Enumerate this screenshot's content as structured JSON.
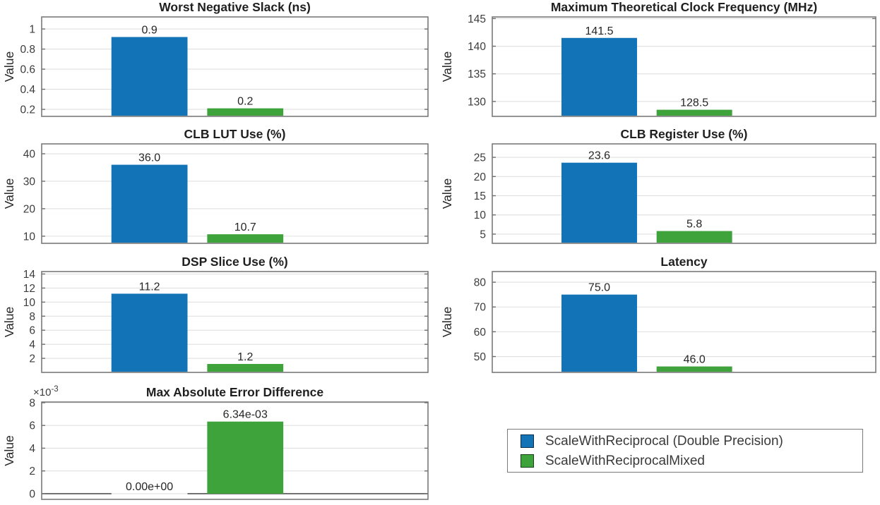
{
  "figure": {
    "background": "#ffffff"
  },
  "colors": {
    "series1": "#1273B7",
    "series2": "#3DA33A",
    "grid": "#e0e0e0",
    "box_border": "#7a7a7a",
    "tick_mark": "#6e6e6e",
    "baseline": "#545454",
    "title_text": "#1f1f1f",
    "tick_text": "#3c3c3c",
    "label_text": "#262626"
  },
  "legend": {
    "entries": [
      {
        "label": "ScaleWithReciprocal (Double Precision)",
        "color_key": "series1"
      },
      {
        "label": "ScaleWithReciprocalMixed",
        "color_key": "series2"
      }
    ]
  },
  "chart_data": [
    {
      "type": "bar",
      "title": "Worst Negative Slack (ns)",
      "ylabel": "Value",
      "categories": [
        "ScaleWithReciprocal (Double Precision)",
        "ScaleWithReciprocalMixed"
      ],
      "values": [
        0.92,
        0.21
      ],
      "bar_labels": [
        "0.9",
        "0.2"
      ],
      "ylim": [
        0.13,
        1.12
      ],
      "yticks": [
        0.2,
        0.4,
        0.6,
        0.8,
        1
      ],
      "ytick_labels": [
        "0.2",
        "0.4",
        "0.6",
        "0.8",
        "1"
      ],
      "grid": true,
      "baseline_at_zero": false,
      "y_offset_text": ""
    },
    {
      "type": "bar",
      "title": "Maximum Theoretical Clock Frequency (MHz)",
      "ylabel": "Value",
      "categories": [
        "ScaleWithReciprocal (Double Precision)",
        "ScaleWithReciprocalMixed"
      ],
      "values": [
        141.5,
        128.5
      ],
      "bar_labels": [
        "141.5",
        "128.5"
      ],
      "ylim": [
        127.3,
        145.3
      ],
      "yticks": [
        130,
        135,
        140,
        145
      ],
      "ytick_labels": [
        "130",
        "135",
        "140",
        "145"
      ],
      "grid": true,
      "baseline_at_zero": false,
      "y_offset_text": ""
    },
    {
      "type": "bar",
      "title": "CLB LUT Use (%)",
      "ylabel": "Value",
      "categories": [
        "ScaleWithReciprocal (Double Precision)",
        "ScaleWithReciprocalMixed"
      ],
      "values": [
        36.0,
        10.7
      ],
      "bar_labels": [
        "36.0",
        "10.7"
      ],
      "ylim": [
        7.4,
        43.6
      ],
      "yticks": [
        10,
        20,
        30,
        40
      ],
      "ytick_labels": [
        "10",
        "20",
        "30",
        "40"
      ],
      "grid": true,
      "baseline_at_zero": false,
      "y_offset_text": ""
    },
    {
      "type": "bar",
      "title": "CLB Register Use (%)",
      "ylabel": "Value",
      "categories": [
        "ScaleWithReciprocal (Double Precision)",
        "ScaleWithReciprocalMixed"
      ],
      "values": [
        23.6,
        5.8
      ],
      "bar_labels": [
        "23.6",
        "5.8"
      ],
      "ylim": [
        2.6,
        28.5
      ],
      "yticks": [
        5,
        10,
        15,
        20,
        25
      ],
      "ytick_labels": [
        "5",
        "10",
        "15",
        "20",
        "25"
      ],
      "grid": true,
      "baseline_at_zero": false,
      "y_offset_text": ""
    },
    {
      "type": "bar",
      "title": "DSP Slice Use (%)",
      "ylabel": "Value",
      "categories": [
        "ScaleWithReciprocal (Double Precision)",
        "ScaleWithReciprocalMixed"
      ],
      "values": [
        11.2,
        1.2
      ],
      "bar_labels": [
        "11.2",
        "1.2"
      ],
      "ylim": [
        0,
        14.35
      ],
      "yticks": [
        2,
        4,
        6,
        8,
        10,
        12,
        14
      ],
      "ytick_labels": [
        "2",
        "4",
        "6",
        "8",
        "10",
        "12",
        "14"
      ],
      "grid": true,
      "baseline_at_zero": false,
      "y_offset_text": ""
    },
    {
      "type": "bar",
      "title": "Latency",
      "ylabel": "Value",
      "categories": [
        "ScaleWithReciprocal (Double Precision)",
        "ScaleWithReciprocalMixed"
      ],
      "values": [
        75.0,
        46.0
      ],
      "bar_labels": [
        "75.0",
        "46.0"
      ],
      "ylim": [
        43.6,
        84.3
      ],
      "yticks": [
        50,
        60,
        70,
        80
      ],
      "ytick_labels": [
        "50",
        "60",
        "70",
        "80"
      ],
      "grid": true,
      "baseline_at_zero": false,
      "y_offset_text": ""
    },
    {
      "type": "bar",
      "title": "Max Absolute Error Difference",
      "ylabel": "Value",
      "categories": [
        "ScaleWithReciprocal (Double Precision)",
        "ScaleWithReciprocalMixed"
      ],
      "values": [
        0,
        6.34
      ],
      "bar_labels": [
        "0.00e+00",
        "6.34e-03"
      ],
      "ylim": [
        -0.5,
        8.06
      ],
      "yticks": [
        0,
        2,
        4,
        6,
        8
      ],
      "ytick_labels": [
        "0",
        "2",
        "4",
        "6",
        "8"
      ],
      "grid": true,
      "baseline_at_zero": true,
      "y_offset_text": "×10^-3"
    }
  ]
}
